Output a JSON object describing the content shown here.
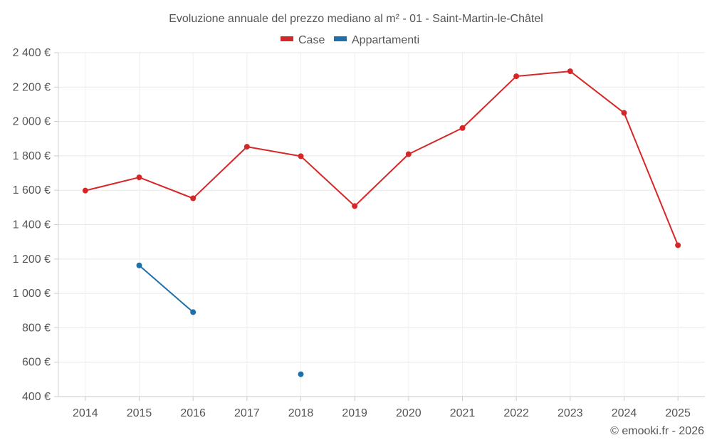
{
  "chart_data": {
    "type": "line",
    "title": "Evoluzione annuale del prezzo mediano al m² - 01 - Saint-Martin-le-Châtel",
    "categories": [
      "2014",
      "2015",
      "2016",
      "2017",
      "2018",
      "2019",
      "2020",
      "2021",
      "2022",
      "2023",
      "2024",
      "2025"
    ],
    "ylim": [
      400,
      2400
    ],
    "yticks": [
      400,
      600,
      800,
      1000,
      1200,
      1400,
      1600,
      1800,
      2000,
      2200,
      2400
    ],
    "ytick_labels": [
      "400 €",
      "600 €",
      "800 €",
      "1 000 €",
      "1 200 €",
      "1 400 €",
      "1 600 €",
      "1 800 €",
      "2 000 €",
      "2 200 €",
      "2 400 €"
    ],
    "legend_position": "top-center",
    "grid": true,
    "series": [
      {
        "name": "Case",
        "color": "#d62728",
        "values": [
          1598,
          1675,
          1553,
          1853,
          1798,
          1508,
          1810,
          1962,
          2263,
          2292,
          2050,
          1280
        ]
      },
      {
        "name": "Appartamenti",
        "color": "#1f6fa8",
        "values": [
          null,
          1163,
          891,
          null,
          530,
          null,
          null,
          null,
          null,
          null,
          null,
          null
        ]
      }
    ],
    "credit": "© emooki.fr - 2026"
  }
}
